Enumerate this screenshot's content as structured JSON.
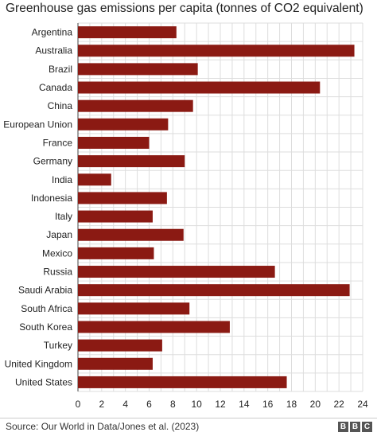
{
  "title": "Greenhouse gas emissions per capita (tonnes of CO2 equivalent)",
  "source": "Source: Our World in Data/Jones et al. (2023)",
  "logo": [
    "B",
    "B",
    "C"
  ],
  "colors": {
    "bar": "#8b1a13",
    "grid": "#dddddd",
    "axis": "#444444"
  },
  "chart_data": {
    "type": "bar",
    "orientation": "horizontal",
    "title": "Greenhouse gas emissions per capita (tonnes of CO2 equivalent)",
    "xlabel": "",
    "ylabel": "",
    "xlim": [
      0,
      24
    ],
    "xticks": [
      0,
      2,
      4,
      6,
      8,
      10,
      12,
      14,
      16,
      18,
      20,
      22,
      24
    ],
    "grid": true,
    "categories": [
      "Argentina",
      "Australia",
      "Brazil",
      "Canada",
      "China",
      "European Union",
      "France",
      "Germany",
      "India",
      "Indonesia",
      "Italy",
      "Japan",
      "Mexico",
      "Russia",
      "Saudi Arabia",
      "South Africa",
      "South Korea",
      "Turkey",
      "United Kingdom",
      "United States"
    ],
    "values": [
      8.3,
      23.3,
      10.1,
      20.4,
      9.7,
      7.6,
      6.0,
      9.0,
      2.8,
      7.5,
      6.3,
      8.9,
      6.4,
      16.6,
      22.9,
      9.4,
      12.8,
      7.1,
      6.3,
      17.6
    ]
  }
}
